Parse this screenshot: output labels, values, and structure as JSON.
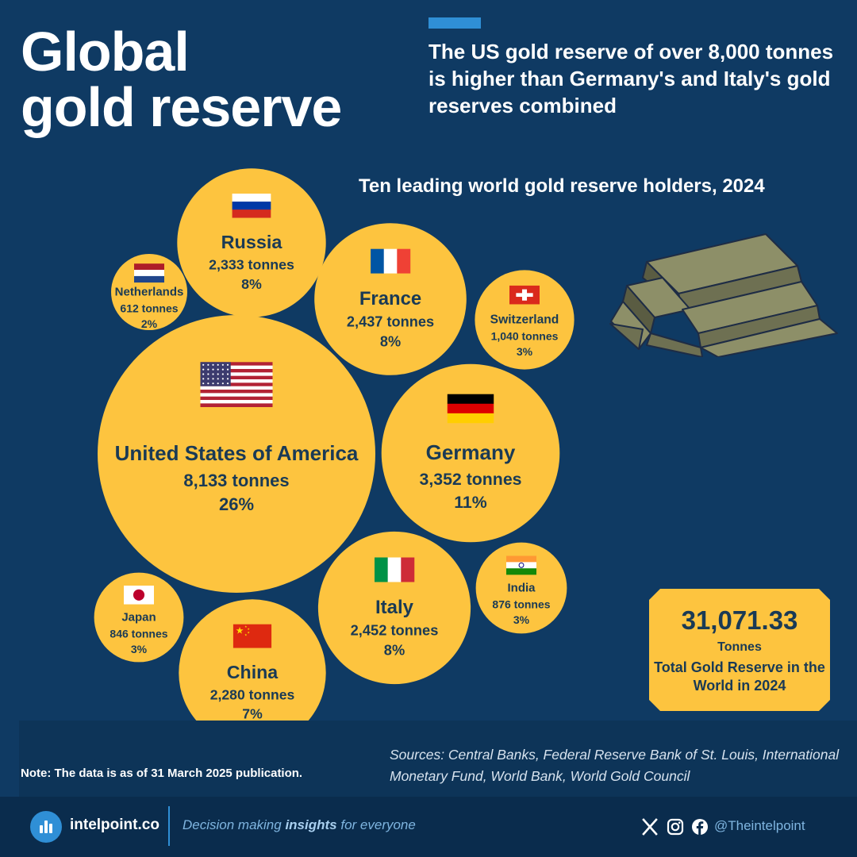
{
  "title": {
    "line1": "Global",
    "line2": "gold reserve"
  },
  "headline": "The US gold reserve of over 8,000 tonnes is higher than Germany's and Italy's gold reserves combined",
  "subtitle": "Ten leading world gold reserve holders, 2024",
  "chart_data": {
    "type": "bubble",
    "title": "Ten leading world gold reserve holders, 2024",
    "unit": "tonnes",
    "items": [
      {
        "name": "United States of America",
        "value": 8133,
        "label": "8,133 tonnes",
        "share": "26%",
        "flag": "usa-flag"
      },
      {
        "name": "Germany",
        "value": 3352,
        "label": "3,352 tonnes",
        "share": "11%",
        "flag": "germany-flag"
      },
      {
        "name": "Italy",
        "value": 2452,
        "label": "2,452 tonnes",
        "share": "8%",
        "flag": "italy-flag"
      },
      {
        "name": "France",
        "value": 2437,
        "label": "2,437 tonnes",
        "share": "8%",
        "flag": "france-flag"
      },
      {
        "name": "Russia",
        "value": 2333,
        "label": "2,333 tonnes",
        "share": "8%",
        "flag": "russia-flag"
      },
      {
        "name": "China",
        "value": 2280,
        "label": "2,280 tonnes",
        "share": "7%",
        "flag": "china-flag"
      },
      {
        "name": "Switzerland",
        "value": 1040,
        "label": "1,040 tonnes",
        "share": "3%",
        "flag": "switzerland-flag"
      },
      {
        "name": "India",
        "value": 876,
        "label": "876 tonnes",
        "share": "3%",
        "flag": "india-flag"
      },
      {
        "name": "Japan",
        "value": 846,
        "label": "846 tonnes",
        "share": "3%",
        "flag": "japan-flag"
      },
      {
        "name": "Netherlands",
        "value": 612,
        "label": "612 tonnes",
        "share": "2%",
        "flag": "netherlands-flag"
      }
    ]
  },
  "total": {
    "value": "31,071.33",
    "unit": "Tonnes",
    "label": "Total Gold Reserve in the World in 2024"
  },
  "note": "Note: The data is as of 31 March 2025 publication.",
  "sources": "Sources: Central Banks, Federal Reserve Bank of St. Louis, International Monetary Fund, World Bank, World Gold Council",
  "footer": {
    "brand": "intelpoint.co",
    "tagline_pre": "Decision making ",
    "tagline_bold": "insights",
    "tagline_post": " for everyone",
    "handle": "@Theintelpoint",
    "icons": [
      "x-icon",
      "instagram-icon",
      "facebook-icon"
    ]
  },
  "colors": {
    "background": "#0f3a63",
    "bubble": "#fdc43f",
    "bubble_text": "#1a3a55",
    "accent": "#2f8fd6"
  }
}
